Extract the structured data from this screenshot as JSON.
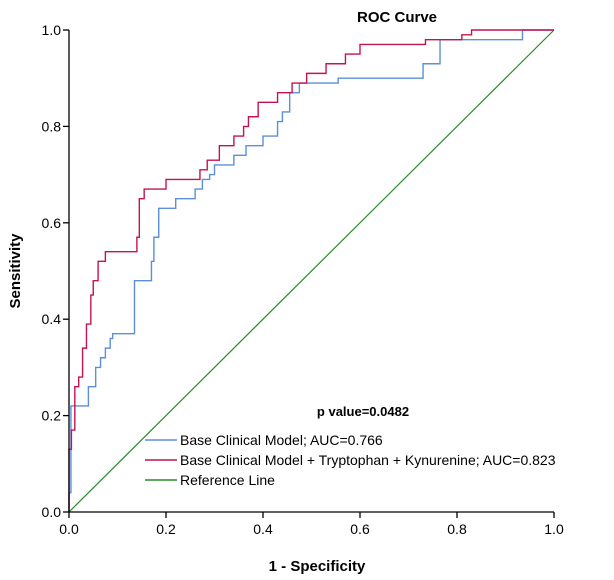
{
  "chart_data": {
    "type": "line",
    "title": "ROC Curve",
    "xlabel": "1 - Specificity",
    "ylabel": "Sensitivity",
    "xlim": [
      0.0,
      1.0
    ],
    "ylim": [
      0.0,
      1.0
    ],
    "xticks": [
      "0.0",
      "0.2",
      "0.4",
      "0.6",
      "0.8",
      "1.0"
    ],
    "yticks": [
      "0.0",
      "0.2",
      "0.4",
      "0.6",
      "0.8",
      "1.0"
    ],
    "grid": false,
    "legend_position": "bottom-right",
    "annotation": "p value=0.0482",
    "series": [
      {
        "name": "Base Clinical Model; AUC=0.766",
        "color": "#5b8fd6",
        "x": [
          0,
          0,
          0.004,
          0.004,
          0.04,
          0.04,
          0.055,
          0.055,
          0.065,
          0.065,
          0.075,
          0.075,
          0.085,
          0.085,
          0.09,
          0.09,
          0.1,
          0.1,
          0.135,
          0.135,
          0.17,
          0.17,
          0.175,
          0.175,
          0.185,
          0.185,
          0.22,
          0.22,
          0.26,
          0.26,
          0.275,
          0.275,
          0.29,
          0.29,
          0.3,
          0.3,
          0.34,
          0.34,
          0.365,
          0.365,
          0.4,
          0.4,
          0.43,
          0.43,
          0.44,
          0.44,
          0.455,
          0.455,
          0.475,
          0.475,
          0.555,
          0.555,
          0.73,
          0.73,
          0.765,
          0.765,
          0.935,
          0.935,
          1.0
        ],
        "y": [
          0,
          0.04,
          0.04,
          0.22,
          0.22,
          0.26,
          0.26,
          0.3,
          0.3,
          0.32,
          0.32,
          0.34,
          0.34,
          0.36,
          0.36,
          0.37,
          0.37,
          0.37,
          0.37,
          0.48,
          0.48,
          0.52,
          0.52,
          0.57,
          0.57,
          0.63,
          0.63,
          0.65,
          0.65,
          0.67,
          0.67,
          0.69,
          0.69,
          0.7,
          0.7,
          0.72,
          0.72,
          0.74,
          0.74,
          0.76,
          0.76,
          0.78,
          0.78,
          0.81,
          0.81,
          0.83,
          0.83,
          0.87,
          0.87,
          0.89,
          0.89,
          0.9,
          0.9,
          0.93,
          0.93,
          0.98,
          0.98,
          1.0,
          1.0
        ]
      },
      {
        "name": "Base Clinical Model + Tryptophan + Kynurenine; AUC=0.823",
        "color": "#c4144c",
        "x": [
          0,
          0,
          0.005,
          0.005,
          0.012,
          0.012,
          0.02,
          0.02,
          0.028,
          0.028,
          0.036,
          0.036,
          0.045,
          0.045,
          0.05,
          0.05,
          0.06,
          0.06,
          0.075,
          0.075,
          0.14,
          0.14,
          0.145,
          0.145,
          0.155,
          0.155,
          0.2,
          0.2,
          0.27,
          0.27,
          0.285,
          0.285,
          0.31,
          0.31,
          0.34,
          0.34,
          0.36,
          0.36,
          0.37,
          0.37,
          0.39,
          0.39,
          0.43,
          0.43,
          0.46,
          0.46,
          0.49,
          0.49,
          0.53,
          0.53,
          0.57,
          0.57,
          0.6,
          0.6,
          0.735,
          0.735,
          0.81,
          0.81,
          0.83,
          0.83,
          1.0
        ],
        "y": [
          0,
          0.13,
          0.13,
          0.17,
          0.17,
          0.26,
          0.26,
          0.28,
          0.28,
          0.34,
          0.34,
          0.39,
          0.39,
          0.45,
          0.45,
          0.48,
          0.48,
          0.52,
          0.52,
          0.54,
          0.54,
          0.57,
          0.57,
          0.65,
          0.65,
          0.67,
          0.67,
          0.69,
          0.69,
          0.71,
          0.71,
          0.73,
          0.73,
          0.76,
          0.76,
          0.78,
          0.78,
          0.8,
          0.8,
          0.82,
          0.82,
          0.85,
          0.85,
          0.87,
          0.87,
          0.89,
          0.89,
          0.91,
          0.91,
          0.93,
          0.93,
          0.95,
          0.95,
          0.97,
          0.97,
          0.98,
          0.98,
          0.99,
          0.99,
          1.0,
          1.0
        ]
      },
      {
        "name": "Reference Line",
        "color": "#2a8a2a",
        "x": [
          0,
          1
        ],
        "y": [
          0,
          1
        ]
      }
    ]
  }
}
